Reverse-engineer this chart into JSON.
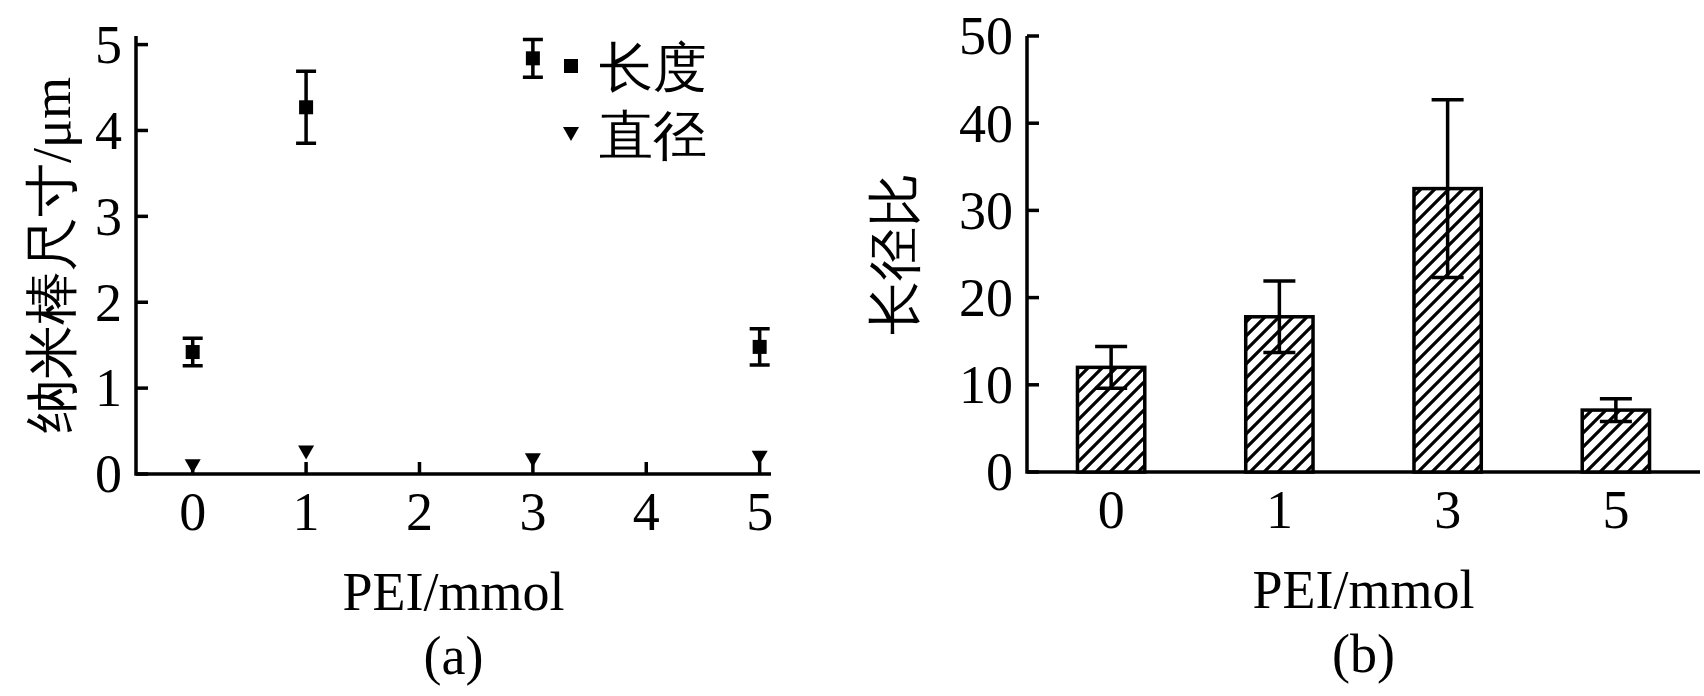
{
  "chart_data": [
    {
      "type": "scatter",
      "x": [
        0,
        1,
        3,
        5
      ],
      "xlim": [
        -0.5,
        5.1
      ],
      "xticks": [
        0,
        1,
        2,
        3,
        4,
        5
      ],
      "ylim": [
        0,
        5.1
      ],
      "yticks": [
        0,
        1,
        2,
        3,
        4,
        5
      ],
      "xlabel": "PEI/mmol",
      "ylabel": "纳米棒尺寸/μm",
      "legend": "top right",
      "annotations": [
        "(a)"
      ],
      "series": [
        {
          "name": "长度",
          "color": "#000000",
          "marker": "square",
          "values": [
            1.42,
            4.27,
            4.84,
            1.48
          ],
          "errors": [
            0.16,
            0.42,
            0.22,
            0.21
          ]
        },
        {
          "name": "直径",
          "color": "#000000",
          "marker": "triangle",
          "values": [
            0.09,
            0.25,
            0.16,
            0.19
          ]
        }
      ]
    },
    {
      "type": "bar",
      "categories": [
        "0",
        "1",
        "3",
        "5"
      ],
      "values": [
        12.0,
        17.8,
        32.5,
        7.1
      ],
      "errors": [
        2.4,
        4.1,
        10.2,
        1.3
      ],
      "color": "#ffffff",
      "ylim": [
        0,
        50
      ],
      "yticks": [
        0,
        10,
        20,
        30,
        40,
        50
      ],
      "xlabel": "PEI/mmol",
      "ylabel": "长径比",
      "annotations": [
        "(b)"
      ]
    }
  ]
}
